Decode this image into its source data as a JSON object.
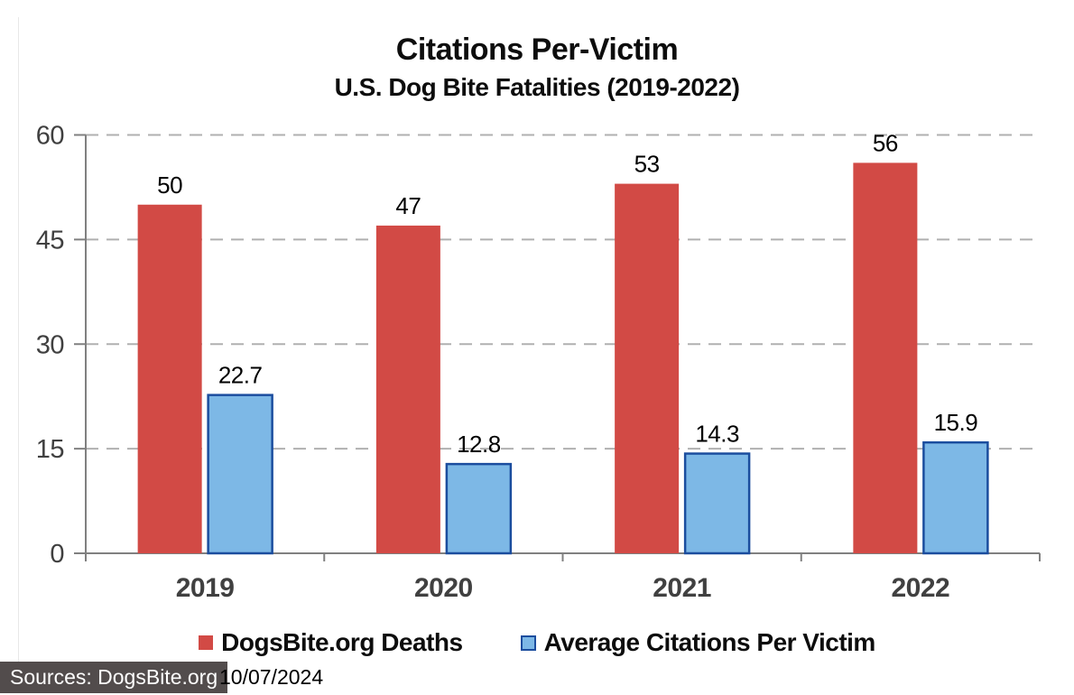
{
  "title": "Citations Per-Victim",
  "subtitle": "U.S. Dog Bite Fatalities (2019-2022)",
  "chart_data": {
    "type": "bar",
    "categories": [
      "2019",
      "2020",
      "2021",
      "2022"
    ],
    "series": [
      {
        "name": "DogsBite.org Deaths",
        "values": [
          50,
          47,
          53,
          56
        ],
        "labels": [
          "50",
          "47",
          "53",
          "56"
        ],
        "fill": "#d24a45",
        "border": ""
      },
      {
        "name": "Average Citations Per Victim",
        "values": [
          22.7,
          12.8,
          14.3,
          15.9
        ],
        "labels": [
          "22.7",
          "12.8",
          "14.3",
          "15.9"
        ],
        "fill": "#7db8e6",
        "border": "#1b4d9e"
      }
    ],
    "y_ticks": [
      0,
      15,
      30,
      45,
      60
    ],
    "y_tick_labels": [
      "0",
      "15",
      "30",
      "45",
      "60"
    ],
    "ylim": [
      0,
      60
    ],
    "grid": "horizontal-dashed",
    "legend_position": "bottom",
    "xlabel": "",
    "ylabel": ""
  },
  "colors": {
    "axis": "#808080",
    "gridline": "#b0b0b0",
    "tick_label": "#404040",
    "category_label": "#404040",
    "data_label": "#000000",
    "source_bar_bg": "#524c4c"
  },
  "footer": {
    "source_label": "Sources: DogsBite.org",
    "date": "10/07/2024"
  }
}
